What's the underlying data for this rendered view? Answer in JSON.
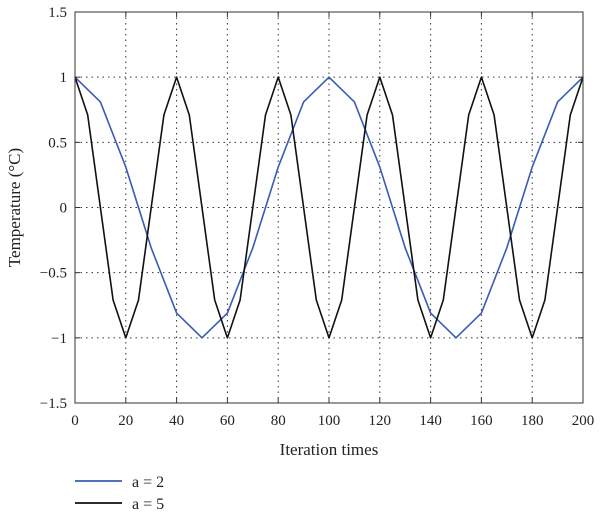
{
  "chart_data": {
    "type": "line",
    "title": "",
    "xlabel": "Iteration times",
    "ylabel": "Temperature (°C)",
    "xlim": [
      0,
      200
    ],
    "ylim": [
      -1.5,
      1.5
    ],
    "xticks": [
      0,
      20,
      40,
      60,
      80,
      100,
      120,
      140,
      160,
      180,
      200
    ],
    "yticks": [
      1.5,
      1,
      0.5,
      0,
      -0.5,
      -1,
      -1.5
    ],
    "ytick_labels": [
      "1.5",
      "1",
      "0.5",
      "0",
      "−0.5",
      "−1",
      "−1.5"
    ],
    "grid": true,
    "legend_position": "bottom-left-outside",
    "series": [
      {
        "name": "a = 2",
        "color": "#3a5bb5",
        "x": [
          0,
          10,
          20,
          30,
          40,
          50,
          60,
          70,
          80,
          90,
          100,
          110,
          120,
          130,
          140,
          150,
          160,
          170,
          180,
          190,
          200
        ],
        "values": [
          1,
          0.81,
          0.31,
          -0.31,
          -0.81,
          -1,
          -0.81,
          -0.31,
          0.31,
          0.81,
          1,
          0.81,
          0.31,
          -0.31,
          -0.81,
          -1,
          -0.81,
          -0.31,
          0.31,
          0.81,
          1
        ]
      },
      {
        "name": "a = 5",
        "color": "#111111",
        "x": [
          0,
          5,
          10,
          15,
          20,
          25,
          30,
          35,
          40,
          45,
          50,
          55,
          60,
          65,
          70,
          75,
          80,
          85,
          90,
          95,
          100,
          105,
          110,
          115,
          120,
          125,
          130,
          135,
          140,
          145,
          150,
          155,
          160,
          165,
          170,
          175,
          180,
          185,
          190,
          195,
          200
        ],
        "values": [
          1,
          0.71,
          0,
          -0.71,
          -1,
          -0.71,
          0,
          0.71,
          1,
          0.71,
          0,
          -0.71,
          -1,
          -0.71,
          0,
          0.71,
          1,
          0.71,
          0,
          -0.71,
          -1,
          -0.71,
          0,
          0.71,
          1,
          0.71,
          0,
          -0.71,
          -1,
          -0.71,
          0,
          0.71,
          1,
          0.71,
          0,
          -0.71,
          -1,
          -0.71,
          0,
          0.71,
          1
        ]
      }
    ]
  }
}
